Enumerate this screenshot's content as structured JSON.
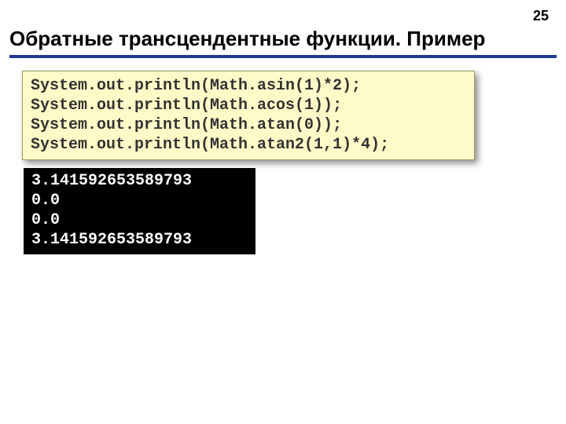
{
  "page_number": "25",
  "title": "Обратные трансцендентные функции. Пример",
  "code_block": {
    "background_color": "#fffbc8",
    "text_color": "#333333",
    "font_family": "Courier New",
    "font_size_pt": 15,
    "font_weight": "bold",
    "border_color": "#999966",
    "shadow": true,
    "lines": [
      "System.out.println(Math.asin(1)*2);",
      "System.out.println(Math.acos(1));",
      "System.out.println(Math.atan(0));",
      "System.out.println(Math.atan2(1,1)*4);"
    ]
  },
  "output_block": {
    "background_color": "#000000",
    "text_color": "#ffffff",
    "font_family": "Courier New",
    "font_size_pt": 15,
    "font_weight": "bold",
    "lines": [
      "3.141592653589793",
      "0.0",
      "0.0",
      "3.141592653589793"
    ]
  },
  "underline_color": "#1f3a93",
  "background_color": "#ffffff"
}
